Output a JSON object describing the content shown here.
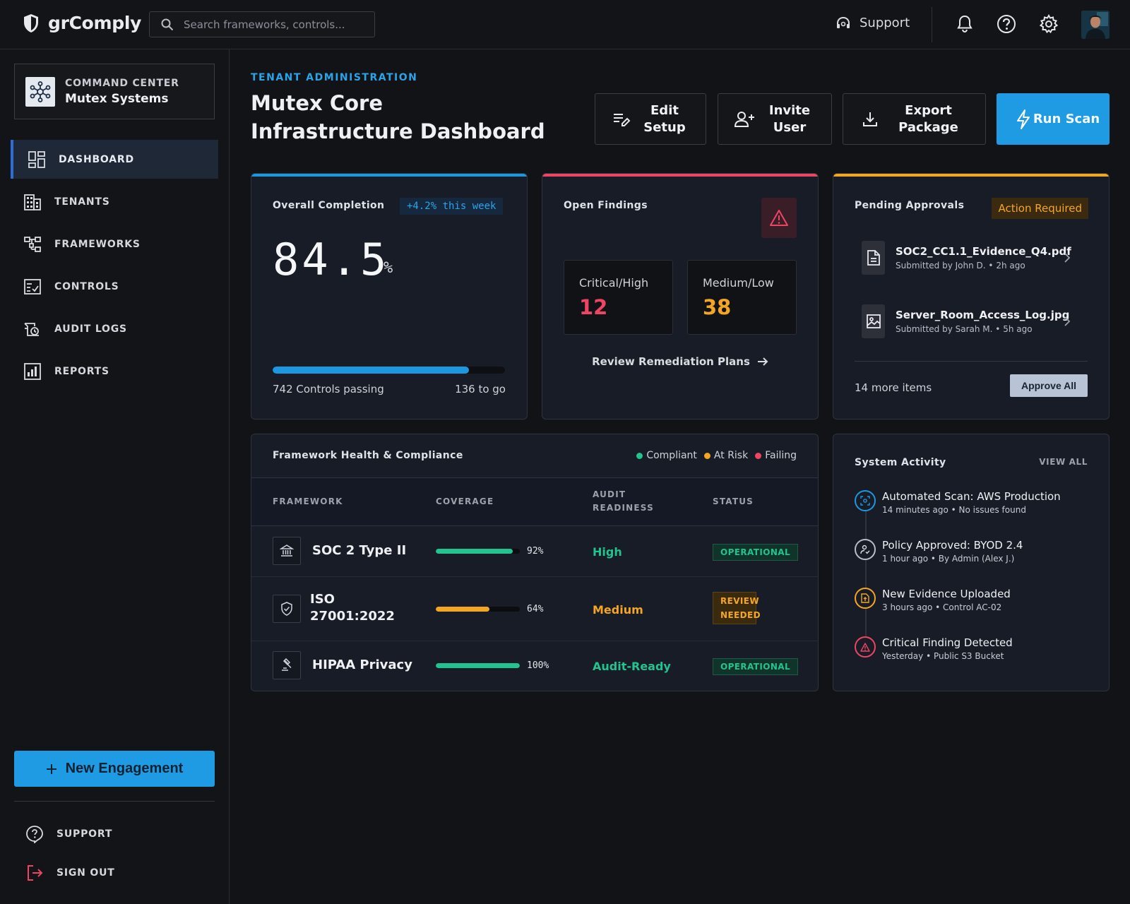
{
  "app": {
    "name": "grComply"
  },
  "search": {
    "placeholder": "Search frameworks, controls..."
  },
  "header": {
    "support_label": "Support"
  },
  "sidebar": {
    "command_center": {
      "title": "COMMAND CENTER",
      "subtitle": "Mutex Systems"
    },
    "items": [
      {
        "label": "DASHBOARD",
        "icon": "dashboard-icon",
        "active": true
      },
      {
        "label": "TENANTS",
        "icon": "building-icon",
        "active": false
      },
      {
        "label": "FRAMEWORKS",
        "icon": "hierarchy-icon",
        "active": false
      },
      {
        "label": "CONTROLS",
        "icon": "checklist-icon",
        "active": false
      },
      {
        "label": "AUDIT LOGS",
        "icon": "history-icon",
        "active": false
      },
      {
        "label": "REPORTS",
        "icon": "chart-icon",
        "active": false
      }
    ],
    "new_engagement": "New Engagement",
    "support": "SUPPORT",
    "sign_out": "SIGN OUT"
  },
  "page": {
    "kicker": "TENANT ADMINISTRATION",
    "title": "Mutex Core Infrastructure Dashboard"
  },
  "actions": {
    "edit_setup": "Edit Setup",
    "invite_user": "Invite User",
    "export_package": "Export Package",
    "run_scan": "Run Scan"
  },
  "completion": {
    "title": "Overall Completion",
    "trend": "+4.2% this week",
    "value": "84.5",
    "unit": "%",
    "progress": 0.845,
    "passing": "742 Controls passing",
    "to_go": "136 to go"
  },
  "findings": {
    "title": "Open Findings",
    "critical_label": "Critical/High",
    "critical_value": "12",
    "medium_label": "Medium/Low",
    "medium_value": "38",
    "link": "Review Remediation Plans"
  },
  "approvals": {
    "title": "Pending Approvals",
    "badge": "Action Required",
    "items": [
      {
        "name": "SOC2_CC1.1_Evidence_Q4.pdf",
        "submitter": "Submitted by John D.",
        "time": "2h ago",
        "icon": "document-icon"
      },
      {
        "name": "Server_Room_Access_Log.jpg",
        "submitter": "Submitted by Sarah M.",
        "time": "5h ago",
        "icon": "image-icon"
      }
    ],
    "more": "14 more items",
    "approve_all": "Approve All"
  },
  "frameworks": {
    "title": "Framework Health & Compliance",
    "legend": {
      "compliant": "Compliant",
      "at_risk": "At Risk",
      "failing": "Failing"
    },
    "columns": {
      "framework": "FRAMEWORK",
      "coverage": "COVERAGE",
      "audit_readiness": "AUDIT READINESS",
      "status": "STATUS"
    },
    "rows": [
      {
        "name": "SOC 2 Type II",
        "icon": "bank-icon",
        "coverage": 0.92,
        "coverage_label": "92%",
        "readiness": "High",
        "status": "OPERATIONAL",
        "tone": "green"
      },
      {
        "name": "ISO 27001:2022",
        "icon": "shield-check-icon",
        "coverage": 0.64,
        "coverage_label": "64%",
        "readiness": "Medium",
        "status": "REVIEW NEEDED",
        "tone": "amber"
      },
      {
        "name": "HIPAA Privacy",
        "icon": "gavel-icon",
        "coverage": 1.0,
        "coverage_label": "100%",
        "readiness": "Audit-Ready",
        "status": "OPERATIONAL",
        "tone": "green"
      }
    ]
  },
  "activity": {
    "title": "System Activity",
    "view_all": "VIEW ALL",
    "items": [
      {
        "title": "Automated Scan: AWS Production",
        "time": "14 minutes ago",
        "detail": "No issues found",
        "tone": "blue",
        "icon": "scan-icon"
      },
      {
        "title": "Policy Approved: BYOD 2.4",
        "time": "1 hour ago",
        "detail": "By Admin (Alex J.)",
        "tone": "gray",
        "icon": "user-check-icon"
      },
      {
        "title": "New Evidence Uploaded",
        "time": "3 hours ago",
        "detail": "Control AC-02",
        "tone": "amber",
        "icon": "upload-file-icon"
      },
      {
        "title": "Critical Finding Detected",
        "time": "Yesterday",
        "detail": "Public S3 Bucket",
        "tone": "red",
        "icon": "warning-icon"
      }
    ]
  },
  "colors": {
    "accent": "#1f9be3",
    "green": "#22c38e",
    "amber": "#f4a623",
    "red": "#ef4565"
  }
}
